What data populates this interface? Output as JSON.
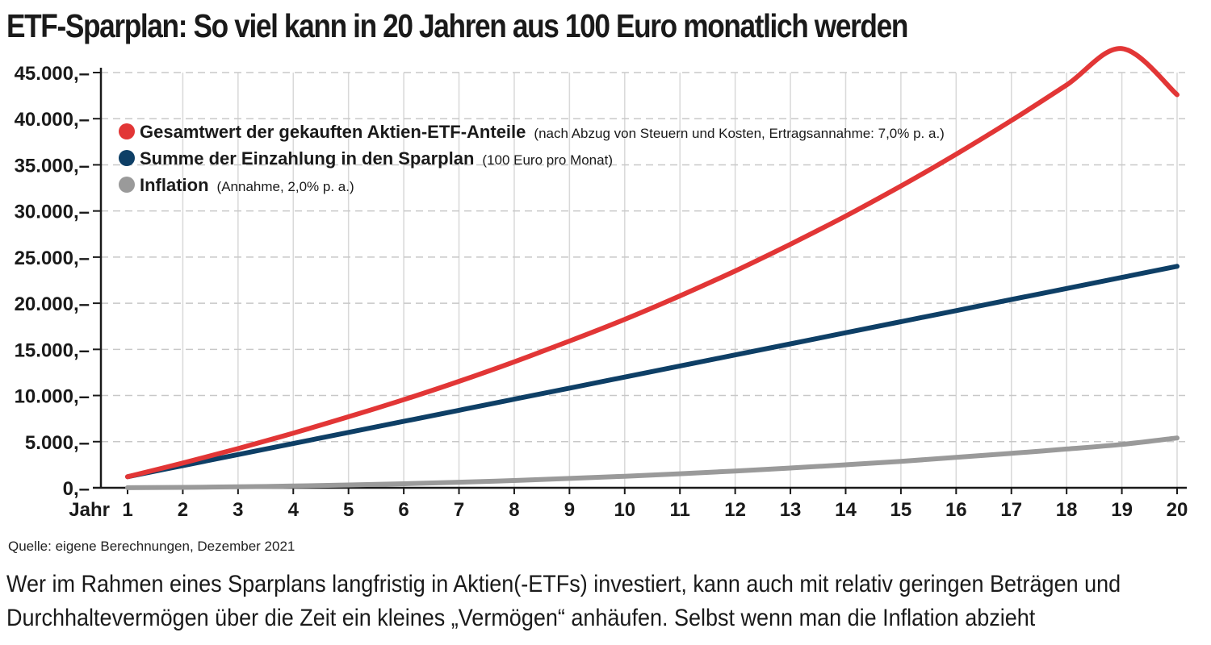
{
  "title": "ETF-Sparplan: So viel kann in 20 Jahren aus 100 Euro monatlich werden",
  "source": "Quelle: eigene Berechnungen, Dezember 2021",
  "caption": "Wer im Rahmen eines Sparplans langfristig in Aktien(-ETFs) investiert, kann auch mit relativ geringen Beträgen und Durchhaltevermögen über die Zeit ein kleines „Vermögen“ anhäufen. Selbst wenn man die Inflation abzieht",
  "chart_data": {
    "type": "line",
    "xlabel": "Jahr",
    "x": [
      1,
      2,
      3,
      4,
      5,
      6,
      7,
      8,
      9,
      10,
      11,
      12,
      13,
      14,
      15,
      16,
      17,
      18,
      19,
      20
    ],
    "xlim": [
      1,
      20
    ],
    "ylim": [
      0,
      45000
    ],
    "yticks": [
      0,
      5000,
      10000,
      15000,
      20000,
      25000,
      30000,
      35000,
      40000,
      45000
    ],
    "ytick_labels": [
      "0,–",
      "5.000,–",
      "10.000,–",
      "15.000,–",
      "20.000,–",
      "25.000,–",
      "30.000,–",
      "35.000,–",
      "40.000,–",
      "45.000,–"
    ],
    "grid": true,
    "legend_position": "top-left",
    "series": [
      {
        "name": "Gesamtwert der gekauften Aktien-ETF-Anteile",
        "note": "(nach Abzug von Steuern und Kosten, Ertragsannahme: 7,0% p. a.)",
        "color": "#e23636",
        "values": [
          1200,
          2680,
          4250,
          5920,
          7700,
          9550,
          11530,
          13650,
          15900,
          18250,
          20800,
          23500,
          26400,
          29450,
          32700,
          36150,
          39800,
          43650,
          47600,
          42600
        ]
      },
      {
        "name": "Summe der Einzahlung in den Sparplan",
        "note": "(100 Euro pro Monat)",
        "color": "#0e3f66",
        "values": [
          1200,
          2400,
          3600,
          4800,
          6000,
          7200,
          8400,
          9600,
          10800,
          12000,
          13200,
          14400,
          15600,
          16800,
          18000,
          19200,
          20400,
          21600,
          22800,
          24000
        ]
      },
      {
        "name": "Inflation",
        "note": "(Annahme, 2,0% p. a.)",
        "color": "#9a9a9a",
        "values": [
          12,
          48,
          108,
          193,
          303,
          440,
          600,
          790,
          1010,
          1250,
          1520,
          1820,
          2140,
          2490,
          2870,
          3290,
          3730,
          4200,
          4700,
          5400
        ]
      }
    ]
  }
}
